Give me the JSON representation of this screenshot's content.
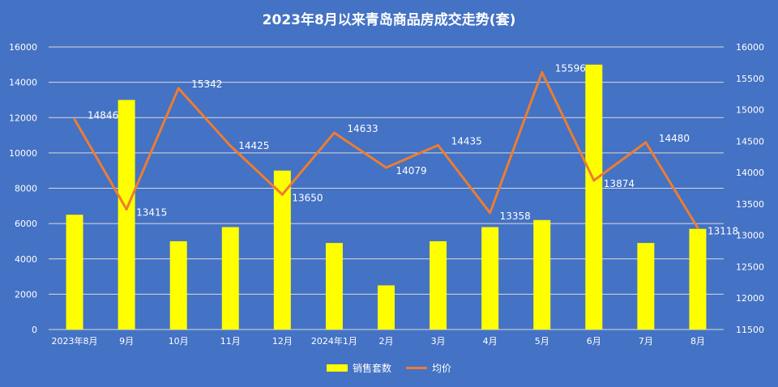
{
  "chart_data": {
    "type": "bar",
    "title": "2023年8月以来青岛商品房成交走势(套)",
    "categories": [
      "2023年8月",
      "9月",
      "10月",
      "11月",
      "12月",
      "2024年1月",
      "2月",
      "3月",
      "4月",
      "5月",
      "6月",
      "7月",
      "8月"
    ],
    "series": [
      {
        "name": "销售套数",
        "type": "bar",
        "axis": "left",
        "color": "#ffff00",
        "values": [
          6500,
          13000,
          5000,
          5800,
          9000,
          4900,
          2500,
          5000,
          5800,
          6200,
          15000,
          4900,
          5700
        ]
      },
      {
        "name": "均价",
        "type": "line",
        "axis": "right",
        "color": "#ed7d31",
        "values": [
          14846,
          13415,
          15342,
          14425,
          13650,
          14633,
          14079,
          14435,
          13358,
          15596,
          13874,
          14480,
          13118
        ],
        "labels": [
          "14846",
          "13415",
          "15342",
          "14425",
          "13650",
          "14633",
          "14079",
          "14435",
          "13358",
          "15596",
          "13874",
          "14480",
          "13118"
        ]
      }
    ],
    "y_left": {
      "min": 0,
      "max": 16000,
      "ticks": [
        "0",
        "2000",
        "4000",
        "6000",
        "8000",
        "10000",
        "12000",
        "14000",
        "16000"
      ]
    },
    "y_right": {
      "min": 11500,
      "max": 16000,
      "ticks": [
        "11500",
        "12000",
        "12500",
        "13000",
        "13500",
        "14000",
        "14500",
        "15000",
        "15500",
        "16000"
      ]
    },
    "grid": true,
    "legend_position": "bottom"
  },
  "colors": {
    "background": "#4472c4",
    "bar": "#ffff00",
    "line": "#ed7d31",
    "grid": "#d9d9d9",
    "text": "#ffffff"
  }
}
